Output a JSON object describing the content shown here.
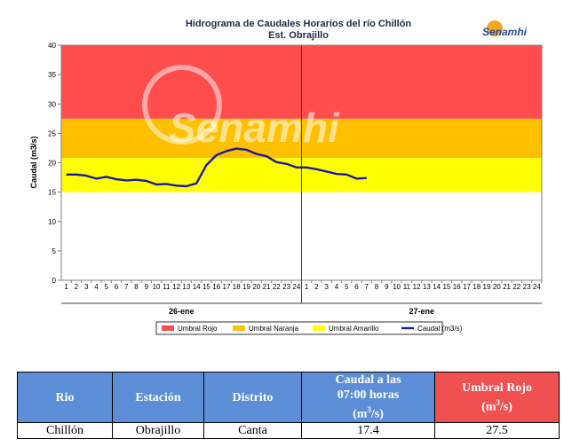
{
  "header": {
    "title": "Hidrograma de Caudales Horarios del río Chillón",
    "subtitle": "Est. Obrajillo",
    "logo_text": "Senamhi",
    "watermark_text": "Senamhi"
  },
  "chart_data": {
    "type": "line",
    "title": "Hidrograma de Caudales Horarios del río Chillón",
    "subtitle": "Est. Obrajillo",
    "ylabel": "Caudal  (m3/s)",
    "xlabel": "",
    "ylim": [
      0,
      40
    ],
    "yticks": [
      0,
      5,
      10,
      15,
      20,
      25,
      30,
      35,
      40
    ],
    "x_hour_labels": [
      "1",
      "2",
      "3",
      "4",
      "5",
      "6",
      "7",
      "8",
      "9",
      "10",
      "11",
      "12",
      "13",
      "14",
      "15",
      "16",
      "17",
      "18",
      "19",
      "20",
      "21",
      "22",
      "23",
      "24"
    ],
    "days": [
      "26-ene",
      "27-ene"
    ],
    "thresholds": [
      {
        "name": "Umbral Amarillo",
        "value": 15,
        "color": "#ffff00"
      },
      {
        "name": "Umbral Naranja",
        "value": 20.8,
        "color": "#ffc000"
      },
      {
        "name": "Umbral Rojo",
        "value": 27.5,
        "color": "#ff4d4d"
      }
    ],
    "band_top": 40,
    "series": [
      {
        "name": "Caudal (m3/s)",
        "color": "#1a1aa6",
        "x": [
          1,
          2,
          3,
          4,
          5,
          6,
          7,
          8,
          9,
          10,
          11,
          12,
          13,
          14,
          15,
          16,
          17,
          18,
          19,
          20,
          21,
          22,
          23,
          24,
          25,
          26,
          27,
          28,
          29,
          30,
          31
        ],
        "values": [
          18.0,
          18.0,
          17.8,
          17.3,
          17.6,
          17.2,
          17.0,
          17.1,
          16.9,
          16.3,
          16.4,
          16.1,
          16.0,
          16.5,
          19.6,
          21.3,
          22.0,
          22.4,
          22.2,
          21.5,
          21.1,
          20.1,
          19.8,
          19.2,
          19.2,
          18.9,
          18.5,
          18.1,
          18.0,
          17.3,
          17.4
        ]
      }
    ],
    "legend": {
      "placement": "bottom",
      "items": [
        {
          "label": "Umbral Rojo",
          "color": "#ff4d4d",
          "kind": "box"
        },
        {
          "label": "Umbral Naranja",
          "color": "#ffc000",
          "kind": "box"
        },
        {
          "label": "Umbral Amarillo",
          "color": "#ffff00",
          "kind": "box"
        },
        {
          "label": "Caudal (m3/s)",
          "color": "#1a1aa6",
          "kind": "line"
        }
      ]
    },
    "grid": false
  },
  "table": {
    "headers": {
      "rio": "Rio",
      "estacion": "Estación",
      "distrito": "Distrito",
      "caudal_l1": "Caudal a las",
      "caudal_l2": "07:00 horas",
      "caudal_l3a": "(m",
      "caudal_sup": "3",
      "caudal_l3b": "/s)",
      "umbral_l1": "Umbral Rojo",
      "umbral_l2a": "(m",
      "umbral_sup": "3",
      "umbral_l2b": "/s)"
    },
    "row": {
      "rio": "Chillón",
      "estacion": "Obrajillo",
      "distrito": "Canta",
      "caudal": "17.4",
      "umbral": "27.5"
    }
  }
}
